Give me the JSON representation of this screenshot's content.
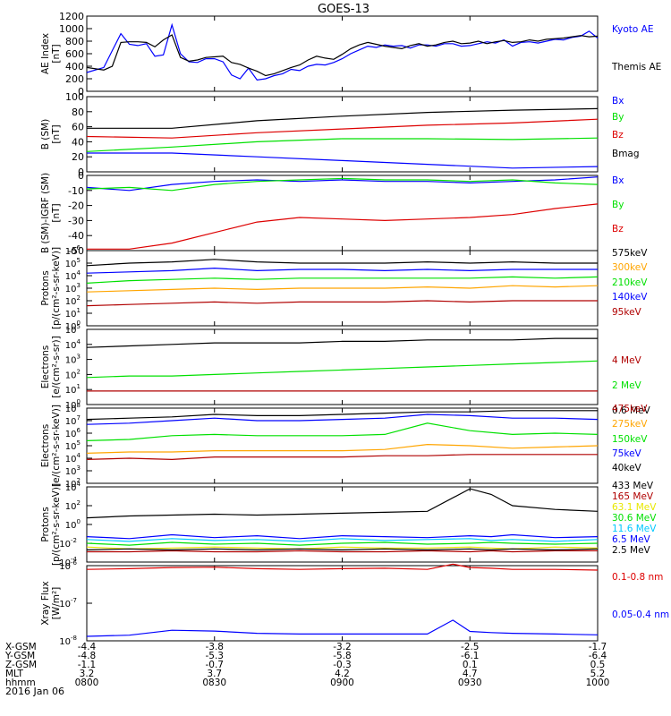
{
  "title": "GOES-13",
  "date_label": "2016 Jan 06",
  "colors": {
    "black": "#000000",
    "blue": "#0000ff",
    "green": "#00e000",
    "red": "#dd0000",
    "orange": "#ffa500",
    "cyan": "#00c8ff",
    "yellow": "#e8e800",
    "darkred": "#b00000"
  },
  "time_axis": {
    "ticks": [
      "0800",
      "0830",
      "0900",
      "0930",
      "1000"
    ],
    "rows": [
      {
        "label": "X-GSM",
        "values": [
          "-4.4",
          "-3.8",
          "-3.2",
          "-2.5",
          "-1.7"
        ]
      },
      {
        "label": "Y-GSM",
        "values": [
          "-4.8",
          "-5.3",
          "-5.8",
          "-6.1",
          "-6.4"
        ]
      },
      {
        "label": "Z-GSM",
        "values": [
          "-1.1",
          "-0.7",
          "-0.3",
          "0.1",
          "0.5"
        ]
      },
      {
        "label": "MLT",
        "values": [
          "3.2",
          "3.7",
          "4.2",
          "4.7",
          "5.2"
        ]
      },
      {
        "label": "hhmm",
        "values": [
          "0800",
          "0830",
          "0900",
          "0930",
          "1000"
        ]
      }
    ]
  },
  "chart_data": [
    {
      "type": "line",
      "ylabel": "AE Index\n[nT]",
      "yscale": "linear",
      "ylim": [
        0,
        1200
      ],
      "yticks": [
        "0",
        "200",
        "400",
        "600",
        "800",
        "1000",
        "1200"
      ],
      "x": [
        0,
        4,
        6,
        8,
        10,
        12,
        14,
        16,
        18,
        20,
        22,
        24,
        26,
        28,
        30,
        32,
        34,
        36,
        38,
        40,
        42,
        44,
        46,
        48,
        50,
        52,
        54,
        56,
        58,
        60,
        62,
        64,
        66,
        68,
        70,
        72,
        74,
        76,
        78,
        80,
        82,
        84,
        86,
        88,
        90,
        92,
        94,
        96,
        98,
        100,
        102,
        104,
        106,
        108,
        110,
        112,
        114,
        116,
        118,
        120
      ],
      "series": [
        {
          "name": "Kyoto AE",
          "color": "#0000ff",
          "values": [
            300,
            380,
            650,
            920,
            750,
            730,
            760,
            560,
            580,
            1060,
            600,
            470,
            460,
            520,
            520,
            470,
            260,
            200,
            370,
            180,
            200,
            250,
            280,
            350,
            330,
            400,
            430,
            420,
            460,
            520,
            600,
            660,
            720,
            700,
            740,
            720,
            730,
            690,
            740,
            740,
            720,
            760,
            760,
            720,
            730,
            760,
            790,
            770,
            820,
            720,
            780,
            790,
            770,
            800,
            830,
            820,
            860,
            880,
            960,
            850
          ]
        },
        {
          "name": "Themis AE",
          "color": "#000000",
          "values": [
            380,
            340,
            400,
            780,
            790,
            790,
            780,
            710,
            820,
            900,
            540,
            480,
            500,
            540,
            550,
            560,
            460,
            430,
            370,
            320,
            250,
            280,
            330,
            380,
            420,
            500,
            560,
            530,
            510,
            590,
            680,
            740,
            780,
            750,
            720,
            700,
            680,
            730,
            760,
            720,
            740,
            780,
            800,
            760,
            770,
            800,
            760,
            790,
            810,
            780,
            790,
            820,
            800,
            830,
            840,
            850,
            870,
            890,
            870,
            880
          ]
        }
      ]
    },
    {
      "type": "line",
      "ylabel": "B (SM)\n[nT]",
      "yscale": "linear",
      "ylim": [
        0,
        100
      ],
      "yticks": [
        "0",
        "20",
        "40",
        "60",
        "80",
        "100"
      ],
      "x": [
        0,
        20,
        40,
        60,
        80,
        100,
        120
      ],
      "series": [
        {
          "name": "Bx",
          "color": "#0000ff",
          "values": [
            25,
            25,
            20,
            15,
            10,
            5,
            7
          ]
        },
        {
          "name": "By",
          "color": "#00e000",
          "values": [
            27,
            33,
            40,
            44,
            44,
            43,
            45
          ]
        },
        {
          "name": "Bz",
          "color": "#dd0000",
          "values": [
            47,
            45,
            52,
            57,
            62,
            65,
            70
          ]
        },
        {
          "name": "Bmag",
          "color": "#000000",
          "values": [
            58,
            58,
            68,
            74,
            79,
            82,
            84
          ]
        }
      ]
    },
    {
      "type": "line",
      "ylabel": "B (SM)-IGRF (SM)\n[nT]",
      "yscale": "linear",
      "ylim": [
        -50,
        0
      ],
      "yticks": [
        "-50",
        "-40",
        "-30",
        "-20",
        "-10",
        "0"
      ],
      "x": [
        0,
        10,
        20,
        30,
        40,
        50,
        60,
        70,
        80,
        90,
        100,
        110,
        120
      ],
      "series": [
        {
          "name": "Bx",
          "color": "#0000ff",
          "values": [
            -8,
            -10,
            -6,
            -4,
            -3,
            -4,
            -3,
            -4,
            -4,
            -5,
            -4,
            -3,
            -1
          ]
        },
        {
          "name": "By",
          "color": "#00e000",
          "values": [
            -9,
            -8,
            -10,
            -6,
            -4,
            -3,
            -2,
            -3,
            -3,
            -4,
            -3,
            -5,
            -6
          ]
        },
        {
          "name": "Bz",
          "color": "#dd0000",
          "values": [
            -49,
            -49,
            -45,
            -38,
            -31,
            -28,
            -29,
            -30,
            -29,
            -28,
            -26,
            -22,
            -19
          ]
        }
      ]
    },
    {
      "type": "line",
      "ylabel": "Protons\n[p/(cm²-s-sr-keV)]",
      "yscale": "log",
      "ylim": [
        1,
        1000000
      ],
      "yticks_exp": [
        0,
        1,
        2,
        3,
        4,
        5,
        6
      ],
      "x": [
        0,
        10,
        20,
        30,
        40,
        50,
        60,
        70,
        80,
        90,
        100,
        110,
        120
      ],
      "series": [
        {
          "name": "575keV",
          "color": "#000000",
          "values": [
            4.8,
            5.0,
            5.1,
            5.3,
            5.1,
            5.0,
            5.0,
            5.0,
            5.1,
            5.0,
            5.1,
            5.0,
            5.0
          ]
        },
        {
          "name": "300keV",
          "color": "#ffa500",
          "values": [
            2.7,
            2.8,
            2.9,
            3.0,
            2.9,
            3.0,
            3.0,
            3.0,
            3.1,
            3.0,
            3.2,
            3.1,
            3.2
          ]
        },
        {
          "name": "210keV",
          "color": "#00e000",
          "values": [
            3.4,
            3.6,
            3.7,
            3.8,
            3.7,
            3.8,
            3.8,
            3.8,
            3.8,
            3.8,
            3.9,
            3.8,
            3.9
          ]
        },
        {
          "name": "140keV",
          "color": "#0000ff",
          "values": [
            4.2,
            4.3,
            4.4,
            4.6,
            4.4,
            4.5,
            4.5,
            4.4,
            4.5,
            4.4,
            4.5,
            4.5,
            4.5
          ]
        },
        {
          "name": "95keV",
          "color": "#b00000",
          "values": [
            1.6,
            1.7,
            1.8,
            1.9,
            1.8,
            1.9,
            1.9,
            1.9,
            2.0,
            1.9,
            2.0,
            2.0,
            2.0
          ]
        }
      ]
    },
    {
      "type": "line",
      "ylabel": "Electrons\n[e/(cm²-s-sr)]",
      "yscale": "log",
      "ylim": [
        1,
        100000
      ],
      "yticks_exp": [
        0,
        1,
        2,
        3,
        4,
        5
      ],
      "x": [
        0,
        10,
        20,
        30,
        40,
        50,
        60,
        70,
        80,
        90,
        100,
        110,
        120
      ],
      "series": [
        {
          "name": "4 MeV",
          "color": "#b00000",
          "values": [
            0.9,
            0.9,
            0.9,
            0.9,
            0.9,
            0.9,
            0.9,
            0.9,
            0.9,
            0.9,
            0.9,
            0.9,
            0.9
          ]
        },
        {
          "name": "2 MeV",
          "color": "#00e000",
          "values": [
            1.8,
            1.9,
            1.9,
            2.0,
            2.1,
            2.2,
            2.3,
            2.4,
            2.5,
            2.6,
            2.7,
            2.8,
            2.9
          ]
        },
        {
          "name": "0.6 MeV",
          "color": "#000000",
          "values": [
            3.8,
            3.9,
            4.0,
            4.1,
            4.1,
            4.1,
            4.2,
            4.2,
            4.3,
            4.3,
            4.3,
            4.4,
            4.4
          ]
        }
      ]
    },
    {
      "type": "line",
      "ylabel": "Electrons\n[e/(cm²-s-sr-keV)]",
      "yscale": "log",
      "ylim": [
        100,
        100000000
      ],
      "yticks_exp": [
        2,
        3,
        4,
        5,
        6,
        7,
        8
      ],
      "x": [
        0,
        10,
        20,
        30,
        40,
        50,
        60,
        70,
        80,
        90,
        100,
        110,
        120
      ],
      "series": [
        {
          "name": "475keV",
          "color": "#b00000",
          "values": [
            3.9,
            4.0,
            3.9,
            4.1,
            4.1,
            4.1,
            4.1,
            4.2,
            4.2,
            4.3,
            4.3,
            4.3,
            4.3
          ]
        },
        {
          "name": "275keV",
          "color": "#ffa500",
          "values": [
            4.4,
            4.5,
            4.5,
            4.6,
            4.6,
            4.6,
            4.6,
            4.7,
            5.1,
            5.0,
            4.8,
            4.9,
            5.0
          ]
        },
        {
          "name": "150keV",
          "color": "#00e000",
          "values": [
            5.4,
            5.5,
            5.8,
            5.9,
            5.8,
            5.8,
            5.8,
            5.9,
            6.8,
            6.2,
            5.9,
            6.0,
            5.9
          ]
        },
        {
          "name": "75keV",
          "color": "#0000ff",
          "values": [
            6.7,
            6.8,
            7.0,
            7.2,
            7.0,
            7.0,
            7.1,
            7.2,
            7.5,
            7.4,
            7.2,
            7.2,
            7.1
          ]
        },
        {
          "name": "40keV",
          "color": "#000000",
          "values": [
            7.1,
            7.2,
            7.3,
            7.5,
            7.4,
            7.4,
            7.5,
            7.6,
            7.7,
            7.7,
            7.8,
            7.8,
            7.8
          ]
        }
      ]
    },
    {
      "type": "line",
      "ylabel": "Protons\n[p/(cm²-s-sr-keV)]",
      "yscale": "log",
      "ylim": [
        0.0001,
        10000
      ],
      "yticks_exp": [
        -4,
        -2,
        0,
        2,
        4
      ],
      "x": [
        0,
        10,
        20,
        30,
        40,
        50,
        60,
        70,
        80,
        90,
        95,
        100,
        110,
        120
      ],
      "series": [
        {
          "name": "433 MeV",
          "color": "#000000",
          "values": [
            0.7,
            0.9,
            1.0,
            1.1,
            1.0,
            1.1,
            1.2,
            1.3,
            1.4,
            3.8,
            3.2,
            2.0,
            1.6,
            1.4
          ]
        },
        {
          "name": "165 MeV",
          "color": "#b00000",
          "values": [
            -2.9,
            -2.9,
            -2.8,
            -2.9,
            -2.9,
            -2.8,
            -2.9,
            -2.9,
            -2.8,
            -2.9,
            -2.8,
            -2.9,
            -2.8,
            -2.8
          ]
        },
        {
          "name": "63.1 MeV",
          "color": "#e8e800",
          "values": [
            -2.4,
            -2.6,
            -2.5,
            -2.4,
            -2.5,
            -2.6,
            -2.4,
            -2.5,
            -2.5,
            -2.4,
            -2.5,
            -2.6,
            -2.4,
            -2.5
          ]
        },
        {
          "name": "30.6 MeV",
          "color": "#00e000",
          "values": [
            -2.0,
            -2.2,
            -1.9,
            -2.1,
            -2.0,
            -2.2,
            -2.0,
            -1.9,
            -2.1,
            -2.0,
            -1.9,
            -2.0,
            -2.1,
            -2.0
          ]
        },
        {
          "name": "11.6 MeV",
          "color": "#00c8ff",
          "values": [
            -1.6,
            -1.8,
            -1.5,
            -1.7,
            -1.6,
            -1.8,
            -1.5,
            -1.7,
            -1.6,
            -1.5,
            -1.7,
            -1.6,
            -1.8,
            -1.6
          ]
        },
        {
          "name": "6.5 MeV",
          "color": "#0000ff",
          "values": [
            -1.3,
            -1.5,
            -1.1,
            -1.4,
            -1.2,
            -1.5,
            -1.2,
            -1.3,
            -1.4,
            -1.2,
            -1.3,
            -1.1,
            -1.4,
            -1.3
          ]
        },
        {
          "name": "2.5 MeV",
          "color": "#000000",
          "values": [
            -2.7,
            -2.6,
            -2.7,
            -2.6,
            -2.7,
            -2.6,
            -2.7,
            -2.6,
            -2.7,
            -2.6,
            -2.7,
            -2.6,
            -2.7,
            -2.6
          ]
        }
      ]
    },
    {
      "type": "line",
      "ylabel": "Xray Flux\n[W/m²]",
      "yscale": "log",
      "ylim": [
        1e-08,
        1e-06
      ],
      "yticks_exp": [
        -8,
        -7,
        -6
      ],
      "x": [
        0,
        10,
        20,
        30,
        40,
        50,
        60,
        70,
        80,
        86,
        90,
        95,
        100,
        110,
        120
      ],
      "series": [
        {
          "name": "0.1-0.8 nm",
          "color": "#dd0000",
          "values": [
            -6.1,
            -6.08,
            -6.05,
            -6.04,
            -6.08,
            -6.1,
            -6.08,
            -6.07,
            -6.1,
            -5.96,
            -6.05,
            -6.07,
            -6.1,
            -6.1,
            -6.12
          ]
        },
        {
          "name": "0.05-0.4 nm",
          "color": "#0000ff",
          "values": [
            -7.88,
            -7.85,
            -7.72,
            -7.74,
            -7.8,
            -7.82,
            -7.82,
            -7.82,
            -7.82,
            -7.45,
            -7.75,
            -7.78,
            -7.8,
            -7.82,
            -7.84
          ]
        }
      ]
    }
  ]
}
